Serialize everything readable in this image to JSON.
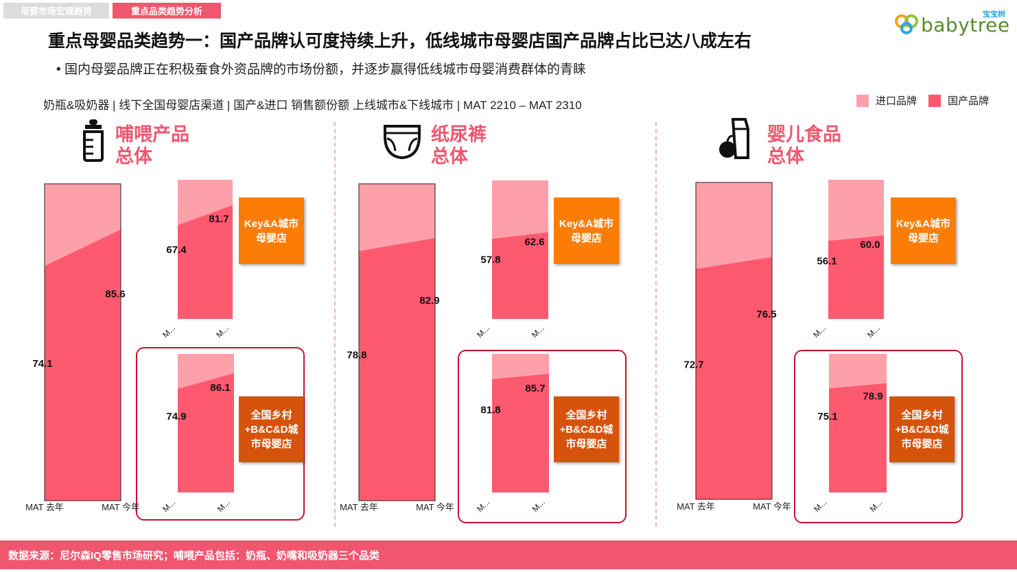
{
  "tabs": [
    "母婴市场宏观趋势",
    "重点品类趋势分析"
  ],
  "logo": {
    "text": "babytree",
    "cn": "宝宝树"
  },
  "title": "重点母婴品类趋势一：国产品牌认可度持续上升，低线城市母婴店国产品牌占比已达八成左右",
  "bullet": "国内母婴品牌正在积极蚕食外资品牌的市场份额，并逐步赢得低线城市母婴消费群体的青睐",
  "subtitle": "奶瓶&吸奶器 | 线下全国母婴店渠道 | 国产&进口 销售额份额 上线城市&下线城市 | MAT 2210 – MAT 2310",
  "legend": {
    "import": "进口品牌",
    "domestic": "国产品牌"
  },
  "colors": {
    "domestic": "#fe5a6f",
    "import": "#fea0aa",
    "accent": "#f0566e",
    "badge_orange": "#fb7d06",
    "badge_dark": "#d5530c",
    "box": "#c8102e"
  },
  "categories": [
    {
      "name": "哺喂产品",
      "sub": "总体",
      "icon": "baby-bottle-icon"
    },
    {
      "name": "纸尿裤",
      "sub": "总体",
      "icon": "diaper-icon"
    },
    {
      "name": "婴儿食品",
      "sub": "总体",
      "icon": "baby-food-icon"
    }
  ],
  "badges": {
    "key_a": "Key&A城市母婴店",
    "rural": "全国乡村+B&C&D城市母婴店"
  },
  "footer": "数据来源：尼尔森IQ零售市场研究；哺喂产品包括：奶瓶、奶嘴和吸奶器三个品类",
  "chart_data": [
    {
      "type": "area",
      "title": "哺喂产品 总体",
      "segment": "总体",
      "categories": [
        "MAT 去年",
        "MAT 今年"
      ],
      "series": [
        {
          "name": "国产品牌",
          "values": [
            74.1,
            85.6
          ]
        }
      ],
      "ylim": [
        0,
        100
      ]
    },
    {
      "type": "area",
      "title": "哺喂产品 Key&A城市母婴店",
      "segment": "Key&A城市母婴店",
      "categories": [
        "M...",
        "M..."
      ],
      "series": [
        {
          "name": "国产品牌",
          "values": [
            67.4,
            81.7
          ]
        }
      ],
      "ylim": [
        0,
        100
      ]
    },
    {
      "type": "area",
      "title": "哺喂产品 全国乡村+B&C&D城市母婴店",
      "segment": "全国乡村+B&C&D城市母婴店",
      "categories": [
        "M...",
        "M..."
      ],
      "series": [
        {
          "name": "国产品牌",
          "values": [
            74.9,
            86.1
          ]
        }
      ],
      "ylim": [
        0,
        100
      ]
    },
    {
      "type": "area",
      "title": "纸尿裤 总体",
      "segment": "总体",
      "categories": [
        "MAT 去年",
        "MAT 今年"
      ],
      "series": [
        {
          "name": "国产品牌",
          "values": [
            78.8,
            82.9
          ]
        }
      ],
      "ylim": [
        0,
        100
      ]
    },
    {
      "type": "area",
      "title": "纸尿裤 Key&A城市母婴店",
      "segment": "Key&A城市母婴店",
      "categories": [
        "M...",
        "M..."
      ],
      "series": [
        {
          "name": "国产品牌",
          "values": [
            57.8,
            62.6
          ]
        }
      ],
      "ylim": [
        0,
        100
      ]
    },
    {
      "type": "area",
      "title": "纸尿裤 全国乡村+B&C&D城市母婴店",
      "segment": "全国乡村+B&C&D城市母婴店",
      "categories": [
        "M...",
        "M..."
      ],
      "series": [
        {
          "name": "国产品牌",
          "values": [
            81.8,
            85.7
          ]
        }
      ],
      "ylim": [
        0,
        100
      ]
    },
    {
      "type": "area",
      "title": "婴儿食品 总体",
      "segment": "总体",
      "categories": [
        "MAT 去年",
        "MAT 今年"
      ],
      "series": [
        {
          "name": "国产品牌",
          "values": [
            72.7,
            76.5
          ]
        }
      ],
      "ylim": [
        0,
        100
      ]
    },
    {
      "type": "area",
      "title": "婴儿食品 Key&A城市母婴店",
      "segment": "Key&A城市母婴店",
      "categories": [
        "M...",
        "M..."
      ],
      "series": [
        {
          "name": "国产品牌",
          "values": [
            56.1,
            60.0
          ]
        }
      ],
      "ylim": [
        0,
        100
      ]
    },
    {
      "type": "area",
      "title": "婴儿食品 全国乡村+B&C&D城市母婴店",
      "segment": "全国乡村+B&C&D城市母婴店",
      "categories": [
        "M...",
        "M..."
      ],
      "series": [
        {
          "name": "国产品牌",
          "values": [
            75.1,
            78.9
          ]
        }
      ],
      "ylim": [
        0,
        100
      ]
    }
  ]
}
